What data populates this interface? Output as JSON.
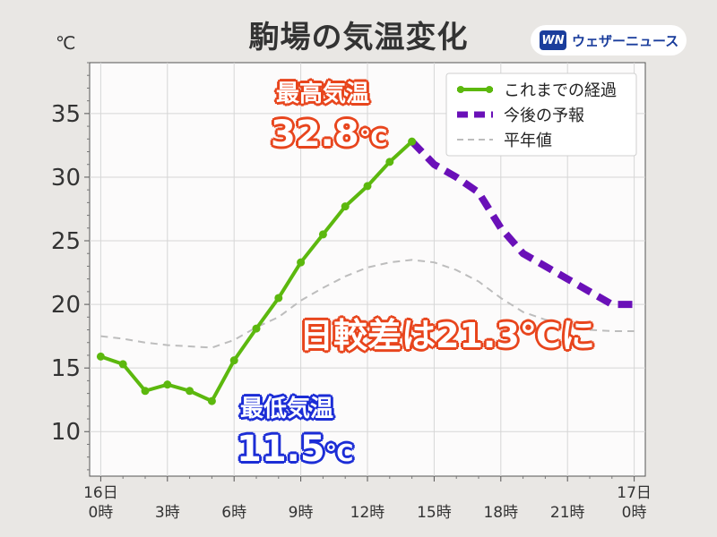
{
  "title": "駒場の気温変化",
  "brand": {
    "mark": "WN",
    "name": "ウェザーニュース"
  },
  "chart_data": {
    "type": "line",
    "unit": "℃",
    "ylim": [
      6.5,
      39
    ],
    "xlim": [
      -0.5,
      24.5
    ],
    "yticks": [
      10,
      15,
      20,
      25,
      30,
      35
    ],
    "xticks": [
      {
        "x": 0,
        "line1": "16日",
        "line2": "0時"
      },
      {
        "x": 3,
        "line1": "",
        "line2": "3時"
      },
      {
        "x": 6,
        "line1": "",
        "line2": "6時"
      },
      {
        "x": 9,
        "line1": "",
        "line2": "9時"
      },
      {
        "x": 12,
        "line1": "",
        "line2": "12時"
      },
      {
        "x": 15,
        "line1": "",
        "line2": "15時"
      },
      {
        "x": 18,
        "line1": "",
        "line2": "18時"
      },
      {
        "x": 21,
        "line1": "",
        "line2": "21時"
      },
      {
        "x": 24,
        "line1": "17日",
        "line2": "0時"
      }
    ],
    "grid": true,
    "legend_position": "top-right",
    "series": [
      {
        "name": "これまでの経過",
        "color": "#5cb80e",
        "style": "solid-markers",
        "x": [
          0,
          1,
          2,
          3,
          4,
          5,
          6,
          7,
          8,
          9,
          10,
          11,
          12,
          13,
          14
        ],
        "y": [
          15.9,
          15.3,
          13.2,
          13.7,
          13.2,
          12.4,
          15.6,
          18.1,
          20.5,
          23.3,
          25.5,
          27.7,
          29.3,
          31.2,
          32.8
        ]
      },
      {
        "name": "今後の予報",
        "color": "#6a10b8",
        "style": "dashed-bold",
        "x": [
          14,
          15,
          16,
          17,
          18,
          19,
          20,
          21,
          22,
          23,
          24
        ],
        "y": [
          32.8,
          31.0,
          30.0,
          28.8,
          26.0,
          24.0,
          23.0,
          22.0,
          21.0,
          20.0,
          20.0
        ]
      },
      {
        "name": "平年値",
        "color": "#bdbdbd",
        "style": "dashed-thin",
        "x": [
          0,
          1,
          2,
          3,
          4,
          5,
          6,
          7,
          8,
          9,
          10,
          11,
          12,
          13,
          14,
          15,
          16,
          17,
          18,
          19,
          20,
          21,
          22,
          23,
          24
        ],
        "y": [
          17.5,
          17.3,
          17.0,
          16.8,
          16.7,
          16.6,
          17.2,
          18.2,
          19.0,
          20.3,
          21.3,
          22.2,
          22.9,
          23.3,
          23.5,
          23.3,
          22.7,
          21.8,
          20.5,
          19.4,
          18.8,
          18.3,
          18.0,
          17.9,
          17.9
        ]
      }
    ]
  },
  "annotations": {
    "max_label": "最高気温",
    "max_value": "32.8",
    "min_label": "最低気温",
    "min_value": "11.5",
    "diff_text": "日較差は21.3℃に",
    "deg": "℃"
  }
}
